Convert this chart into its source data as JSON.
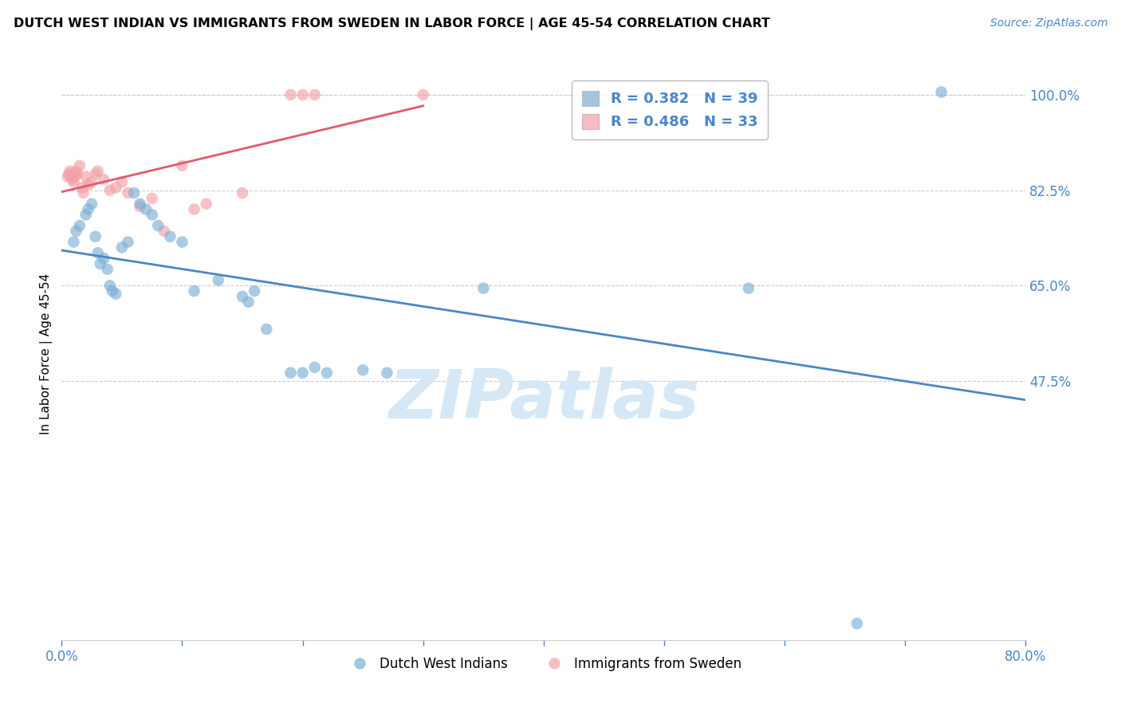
{
  "title": "DUTCH WEST INDIAN VS IMMIGRANTS FROM SWEDEN IN LABOR FORCE | AGE 45-54 CORRELATION CHART",
  "source": "Source: ZipAtlas.com",
  "ylabel": "In Labor Force | Age 45-54",
  "xlim_pct": [
    0.0,
    80.0
  ],
  "ylim_pct": [
    0.0,
    105.0
  ],
  "ytick_vals": [
    47.5,
    65.0,
    82.5,
    100.0
  ],
  "ytick_labels": [
    "47.5%",
    "65.0%",
    "82.5%",
    "100.0%"
  ],
  "xtick_vals": [
    0.0,
    80.0
  ],
  "xtick_labels": [
    "0.0%",
    "80.0%"
  ],
  "legend_r_blue": "R = 0.382",
  "legend_n_blue": "N = 39",
  "legend_r_pink": "R = 0.486",
  "legend_n_pink": "N = 33",
  "blue_scatter_x": [
    1.0,
    1.2,
    1.5,
    2.0,
    2.2,
    2.5,
    2.8,
    3.0,
    3.2,
    3.5,
    3.8,
    4.0,
    4.2,
    4.5,
    5.0,
    5.5,
    6.0,
    6.5,
    7.0,
    7.5,
    8.0,
    9.0,
    10.0,
    11.0,
    13.0,
    15.0,
    15.5,
    16.0,
    17.0,
    19.0,
    20.0,
    21.0,
    22.0,
    25.0,
    27.0,
    35.0,
    57.0,
    66.0,
    73.0
  ],
  "blue_scatter_y": [
    73.0,
    75.0,
    76.0,
    78.0,
    79.0,
    80.0,
    74.0,
    71.0,
    69.0,
    70.0,
    68.0,
    65.0,
    64.0,
    63.5,
    72.0,
    73.0,
    82.0,
    80.0,
    79.0,
    78.0,
    76.0,
    74.0,
    73.0,
    64.0,
    66.0,
    63.0,
    62.0,
    64.0,
    57.0,
    49.0,
    49.0,
    50.0,
    49.0,
    49.5,
    49.0,
    64.5,
    64.5,
    3.0,
    100.5
  ],
  "pink_scatter_x": [
    0.5,
    0.6,
    0.7,
    0.8,
    0.9,
    1.0,
    1.1,
    1.2,
    1.3,
    1.5,
    1.7,
    1.8,
    2.0,
    2.2,
    2.5,
    2.8,
    3.0,
    3.5,
    4.0,
    4.5,
    5.0,
    5.5,
    6.5,
    7.5,
    8.5,
    10.0,
    11.0,
    12.0,
    15.0,
    19.0,
    20.0,
    21.0,
    30.0
  ],
  "pink_scatter_y": [
    85.0,
    85.5,
    86.0,
    85.0,
    84.5,
    84.0,
    85.0,
    86.0,
    85.5,
    87.0,
    83.0,
    82.0,
    85.0,
    83.5,
    84.0,
    85.5,
    86.0,
    84.5,
    82.5,
    83.0,
    84.0,
    82.0,
    79.5,
    81.0,
    75.0,
    87.0,
    79.0,
    80.0,
    82.0,
    100.0,
    100.0,
    100.0,
    100.0
  ],
  "blue_color": "#7BAFD4",
  "pink_color": "#F4A0A8",
  "blue_line_color": "#4A86C8",
  "pink_line_color": "#E05A6E",
  "watermark_color": "#D6E8F5",
  "background_color": "#FFFFFF",
  "grid_color": "#CCCCCC",
  "tick_color": "#4A86C8",
  "title_color": "#000000",
  "source_color": "#4A86C8"
}
